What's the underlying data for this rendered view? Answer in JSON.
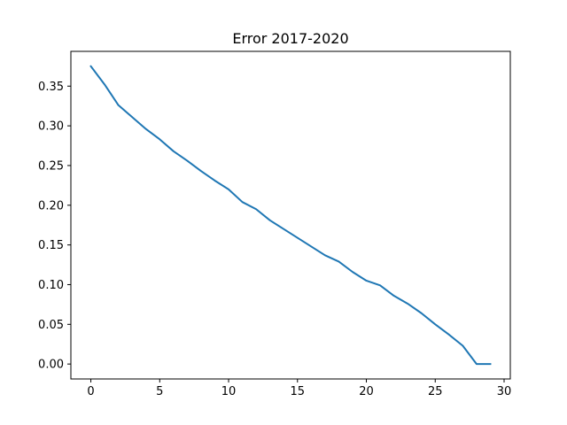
{
  "chart_data": {
    "type": "line",
    "title": "Error 2017-2020",
    "xlabel": "",
    "ylabel": "",
    "xlim": [
      -1.45,
      30.45
    ],
    "ylim": [
      -0.0188,
      0.3938
    ],
    "xticks": [
      0,
      5,
      10,
      15,
      20,
      25,
      30
    ],
    "xtick_labels": [
      "0",
      "5",
      "10",
      "15",
      "20",
      "25",
      "30"
    ],
    "yticks": [
      0.0,
      0.05,
      0.1,
      0.15,
      0.2,
      0.25,
      0.3,
      0.35
    ],
    "ytick_labels": [
      "0.00",
      "0.05",
      "0.10",
      "0.15",
      "0.20",
      "0.25",
      "0.30",
      "0.35"
    ],
    "grid": false,
    "line_color": "#1f77b4",
    "series": [
      {
        "x": [
          0,
          1,
          2,
          3,
          4,
          5,
          6,
          7,
          8,
          9,
          10,
          11,
          12,
          13,
          14,
          15,
          16,
          17,
          18,
          19,
          20,
          21,
          22,
          23,
          24,
          25,
          26,
          27,
          28,
          29
        ],
        "values": [
          0.375,
          0.352,
          0.326,
          0.311,
          0.296,
          0.283,
          0.268,
          0.256,
          0.243,
          0.231,
          0.22,
          0.204,
          0.195,
          0.181,
          0.17,
          0.159,
          0.148,
          0.137,
          0.129,
          0.116,
          0.105,
          0.099,
          0.086,
          0.076,
          0.064,
          0.05,
          0.037,
          0.023,
          0.0,
          0.0
        ]
      }
    ]
  }
}
